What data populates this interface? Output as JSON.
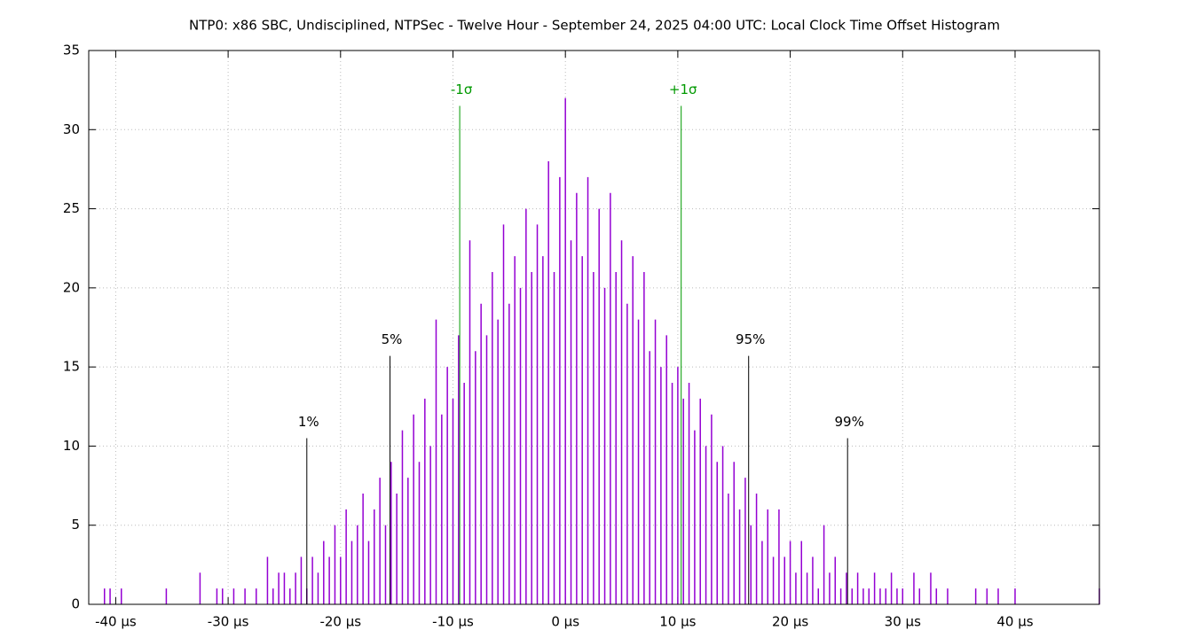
{
  "chart_data": {
    "type": "impulse",
    "title": "NTP0: x86 SBC, Undisciplined, NTPSec - Twelve Hour - September 24, 2025 04:00 UTC: Local Clock Time Offset Histogram",
    "color": "#9400d3",
    "grid": true,
    "xlim": [
      -42.4,
      47.5
    ],
    "ylim": [
      0,
      35
    ],
    "xticks": [
      {
        "value": -40,
        "label": "-40 µs"
      },
      {
        "value": -30,
        "label": "-30 µs"
      },
      {
        "value": -20,
        "label": "-20 µs"
      },
      {
        "value": -10,
        "label": "-10 µs"
      },
      {
        "value": 0,
        "label": "0 µs"
      },
      {
        "value": 10,
        "label": "10 µs"
      },
      {
        "value": 20,
        "label": "20 µs"
      },
      {
        "value": 30,
        "label": "30 µs"
      },
      {
        "value": 40,
        "label": "40 µs"
      }
    ],
    "yticks": [
      0,
      5,
      10,
      15,
      20,
      25,
      30,
      35
    ],
    "x": [
      -41,
      -40.5,
      -39.5,
      -35.5,
      -32.5,
      -31,
      -30.5,
      -29.5,
      -28.5,
      -27.5,
      -26.5,
      -26,
      -25.5,
      -25,
      -24.5,
      -24,
      -23.5,
      -23,
      -22.5,
      -22,
      -21.5,
      -21,
      -20.5,
      -20,
      -19.5,
      -19,
      -18.5,
      -18,
      -17.5,
      -17,
      -16.5,
      -16,
      -15.5,
      -15,
      -14.5,
      -14,
      -13.5,
      -13,
      -12.5,
      -12,
      -11.5,
      -11,
      -10.5,
      -10,
      -9.5,
      -9,
      -8.5,
      -8,
      -7.5,
      -7,
      -6.5,
      -6,
      -5.5,
      -5,
      -4.5,
      -4,
      -3.5,
      -3,
      -2.5,
      -2,
      -1.5,
      -1,
      -0.5,
      0,
      0.5,
      1,
      1.5,
      2,
      2.5,
      3,
      3.5,
      4,
      4.5,
      5,
      5.5,
      6,
      6.5,
      7,
      7.5,
      8,
      8.5,
      9,
      9.5,
      10,
      10.5,
      11,
      11.5,
      12,
      12.5,
      13,
      13.5,
      14,
      14.5,
      15,
      15.5,
      16,
      16.5,
      17,
      17.5,
      18,
      18.5,
      19,
      19.5,
      20,
      20.5,
      21,
      21.5,
      22,
      22.5,
      23,
      23.5,
      24,
      24.5,
      25,
      25.5,
      26,
      26.5,
      27,
      27.5,
      28,
      28.5,
      29,
      29.5,
      30,
      31,
      31.5,
      32.5,
      33,
      34,
      36.5,
      37.5,
      38.5,
      40,
      47.5
    ],
    "values": [
      1,
      1,
      1,
      1,
      2,
      1,
      1,
      1,
      1,
      1,
      3,
      1,
      2,
      2,
      1,
      2,
      3,
      1,
      3,
      2,
      4,
      3,
      5,
      3,
      6,
      4,
      5,
      7,
      4,
      6,
      8,
      5,
      9,
      7,
      11,
      8,
      12,
      9,
      13,
      10,
      18,
      12,
      15,
      13,
      17,
      14,
      23,
      16,
      19,
      17,
      21,
      18,
      24,
      19,
      22,
      20,
      25,
      21,
      24,
      22,
      28,
      21,
      27,
      32,
      23,
      26,
      22,
      27,
      21,
      25,
      20,
      26,
      21,
      23,
      19,
      22,
      18,
      21,
      16,
      18,
      15,
      17,
      14,
      15,
      13,
      14,
      11,
      13,
      10,
      12,
      9,
      10,
      7,
      9,
      6,
      8,
      5,
      7,
      4,
      6,
      3,
      6,
      3,
      4,
      2,
      4,
      2,
      3,
      1,
      5,
      2,
      3,
      1,
      2,
      1,
      2,
      1,
      1,
      2,
      1,
      1,
      2,
      1,
      1,
      2,
      1,
      2,
      1,
      1,
      1,
      1,
      1,
      1,
      1
    ],
    "markers": [
      {
        "label": "1%",
        "x": -23,
        "height": 10.5,
        "color": "#000000"
      },
      {
        "label": "5%",
        "x": -15.6,
        "height": 15.7,
        "color": "#000000"
      },
      {
        "label": "-1σ",
        "x": -9.4,
        "height": 31.5,
        "color": "#009900"
      },
      {
        "label": "+1σ",
        "x": 10.3,
        "height": 31.5,
        "color": "#009900"
      },
      {
        "label": "95%",
        "x": 16.3,
        "height": 15.7,
        "color": "#000000"
      },
      {
        "label": "99%",
        "x": 25.1,
        "height": 10.5,
        "color": "#000000"
      }
    ]
  }
}
